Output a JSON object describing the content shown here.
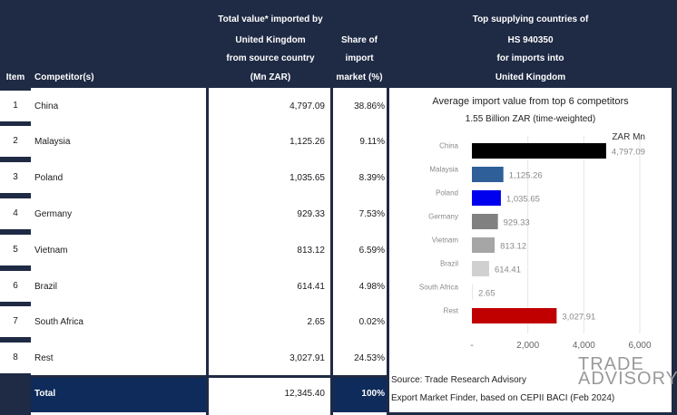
{
  "header": {
    "item": "Item",
    "competitor": "Competitor(s)",
    "total_value_lines": [
      "Total value* imported by",
      "United Kingdom",
      "from source country",
      "(Mn ZAR)"
    ],
    "share_lines": [
      "Share of",
      "import",
      "market (%)"
    ],
    "top_lines": [
      "Top supplying countries of",
      "HS 940350",
      "for imports into",
      "United Kingdom"
    ]
  },
  "rows": [
    {
      "item": "1",
      "competitor": "China",
      "value": "4,797.09",
      "share": "38.86%"
    },
    {
      "item": "2",
      "competitor": "Malaysia",
      "value": "1,125.26",
      "share": "9.11%"
    },
    {
      "item": "3",
      "competitor": "Poland",
      "value": "1,035.65",
      "share": "8.39%"
    },
    {
      "item": "4",
      "competitor": "Germany",
      "value": "929.33",
      "share": "7.53%"
    },
    {
      "item": "5",
      "competitor": "Vietnam",
      "value": "813.12",
      "share": "6.59%"
    },
    {
      "item": "6",
      "competitor": "Brazil",
      "value": "614.41",
      "share": "4.98%"
    },
    {
      "item": "7",
      "competitor": "South Africa",
      "value": "2.65",
      "share": "0.02%"
    },
    {
      "item": "8",
      "competitor": "Rest",
      "value": "3,027.91",
      "share": "24.53%"
    }
  ],
  "total": {
    "label": "Total",
    "value": "12,345.40",
    "share": "100%"
  },
  "chart_data": {
    "type": "bar",
    "orientation": "horizontal",
    "title": "Average import value from top 6 competitors",
    "subtitle": "1.55 Billion ZAR (time-weighted)",
    "unit_label": "ZAR Mn",
    "categories": [
      "China",
      "Malaysia",
      "Poland",
      "Germany",
      "Vietnam",
      "Brazil",
      "South Africa",
      "Rest"
    ],
    "values": [
      4797.09,
      1125.26,
      1035.65,
      929.33,
      813.12,
      614.41,
      2.65,
      3027.91
    ],
    "value_labels": [
      "4,797.09",
      "1,125.26",
      "1,035.65",
      "929.33",
      "813.12",
      "614.41",
      "2.65",
      "3,027.91"
    ],
    "colors": [
      "#000000",
      "#2e5f98",
      "#0000ee",
      "#808080",
      "#a6a6a6",
      "#d0d0d0",
      "#e6e6e6",
      "#c00000"
    ],
    "xlim": [
      0,
      6000
    ],
    "xticks": [
      0,
      2000,
      4000,
      6000
    ],
    "xtick_labels": [
      "-",
      "2,000",
      "4,000",
      "6,000"
    ],
    "grid": true,
    "legend": "none"
  },
  "source_lines": [
    "Source: Trade Research Advisory",
    "Export Market Finder, based on CEPII BACI (Feb 2024)"
  ],
  "logo": {
    "line1": "TRADE",
    "line2": "ADVISORY"
  },
  "colors": {
    "header": "#1f2a44",
    "total": "#0f2b5b"
  }
}
